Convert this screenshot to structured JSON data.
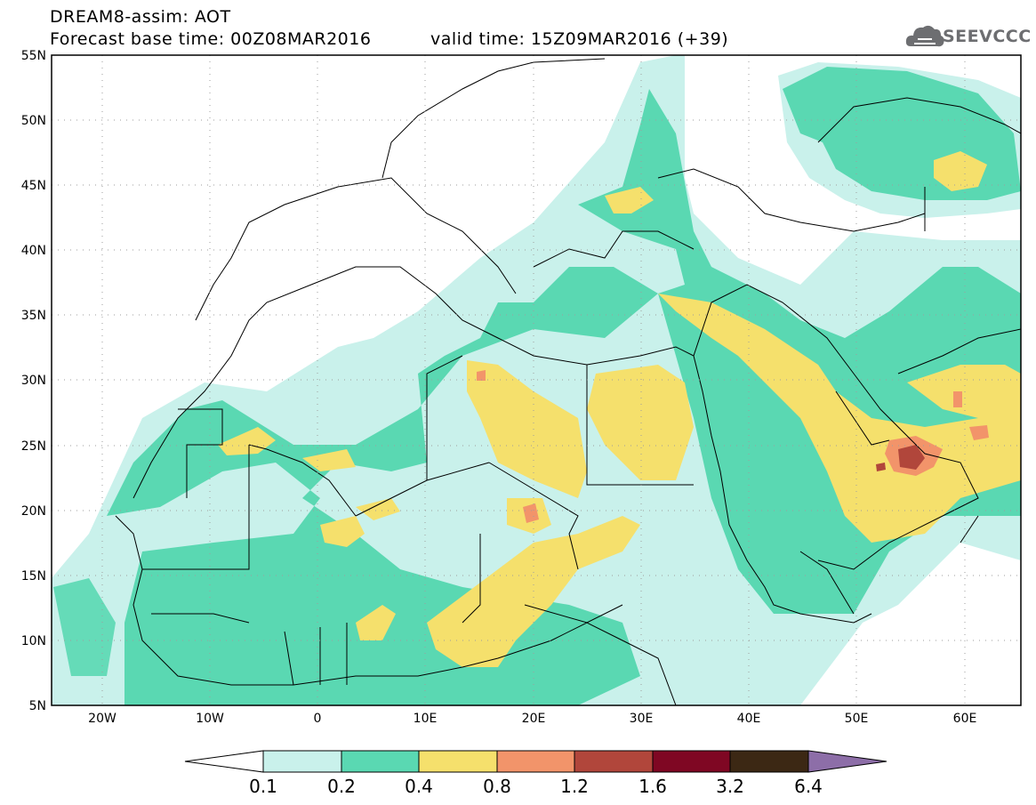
{
  "header": {
    "line1": "DREAM8-assim: AOT",
    "line2a": "Forecast base time: 00Z08MAR2016",
    "line2b": "valid time: 15Z09MAR2016 (+39)"
  },
  "logo": {
    "text": "SEEVCCC",
    "icon": "cloud-icon"
  },
  "map": {
    "lat_ticks": [
      "55N",
      "50N",
      "45N",
      "40N",
      "35N",
      "30N",
      "25N",
      "20N",
      "15N",
      "10N",
      "5N"
    ],
    "lon_ticks": [
      "20W",
      "10W",
      "0",
      "10E",
      "20E",
      "30E",
      "40E",
      "50E",
      "60E"
    ],
    "lon_range": [
      "25W",
      "65E"
    ],
    "lat_range": [
      "5N",
      "55N"
    ],
    "grid": "dotted"
  },
  "colorbar": {
    "labels": [
      "0.1",
      "0.2",
      "0.4",
      "0.8",
      "1.2",
      "1.6",
      "3.2",
      "6.4"
    ],
    "colors": [
      "#ffffff",
      "#c9f1eb",
      "#5ad8b2",
      "#f5e06c",
      "#f2946a",
      "#b1463b",
      "#7f0723",
      "#3c2814",
      "#8d6ea8"
    ]
  }
}
